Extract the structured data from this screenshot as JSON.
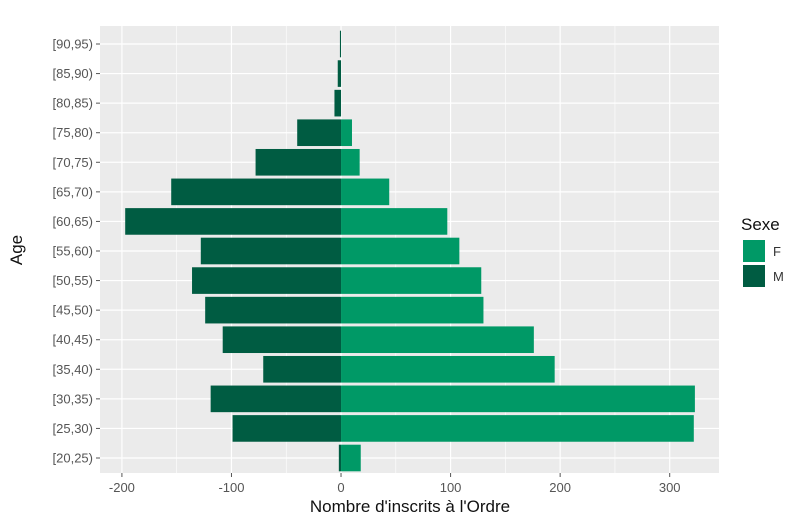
{
  "chart_data": {
    "type": "bar",
    "orientation": "horizontal",
    "xlabel": "Nombre d'inscrits à l'Ordre",
    "ylabel": "Age",
    "xlim": [
      -220,
      345
    ],
    "x_ticks": [
      -200,
      -100,
      0,
      100,
      200,
      300
    ],
    "categories": [
      "[20,25)",
      "[25,30)",
      "[30,35)",
      "[35,40)",
      "[40,45)",
      "[45,50)",
      "[50,55)",
      "[55,60)",
      "[60,65)",
      "[65,70)",
      "[70,75)",
      "[75,80)",
      "[80,85)",
      "[85,90)",
      "[90,95)"
    ],
    "series": [
      {
        "name": "F",
        "color": "#009966",
        "values": [
          18,
          322,
          323,
          195,
          176,
          130,
          128,
          108,
          97,
          44,
          17,
          10,
          0,
          0,
          0
        ]
      },
      {
        "name": "M",
        "color": "#005C42",
        "values": [
          -2,
          -99,
          -119,
          -71,
          -108,
          -124,
          -136,
          -128,
          -197,
          -155,
          -78,
          -40,
          -6,
          -3,
          -1
        ]
      }
    ],
    "legend": {
      "title": "Sexe",
      "position": "right",
      "entries": [
        "F",
        "M"
      ]
    },
    "grid": true,
    "panel_background": "#EBEBEB"
  }
}
